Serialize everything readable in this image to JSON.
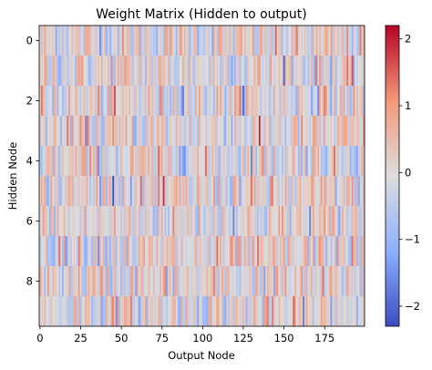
{
  "chart_data": {
    "type": "heatmap",
    "title": "Weight Matrix (Hidden to output)",
    "xlabel": "Output Node",
    "ylabel": "Hidden Node",
    "rows": 10,
    "cols": 200,
    "xlim": [
      0,
      199
    ],
    "ylim": [
      0,
      9
    ],
    "x_ticks": [
      0,
      25,
      50,
      75,
      100,
      125,
      150,
      175
    ],
    "y_ticks": [
      0,
      2,
      4,
      6,
      8
    ],
    "colormap": "coolwarm",
    "vmin": -2.3,
    "vmax": 2.2,
    "colorbar_ticks": [
      -2,
      -1,
      0,
      1,
      2
    ],
    "colors": {
      "low": "#3b4cc0",
      "mid": "#dddddd",
      "high": "#b40426"
    }
  }
}
